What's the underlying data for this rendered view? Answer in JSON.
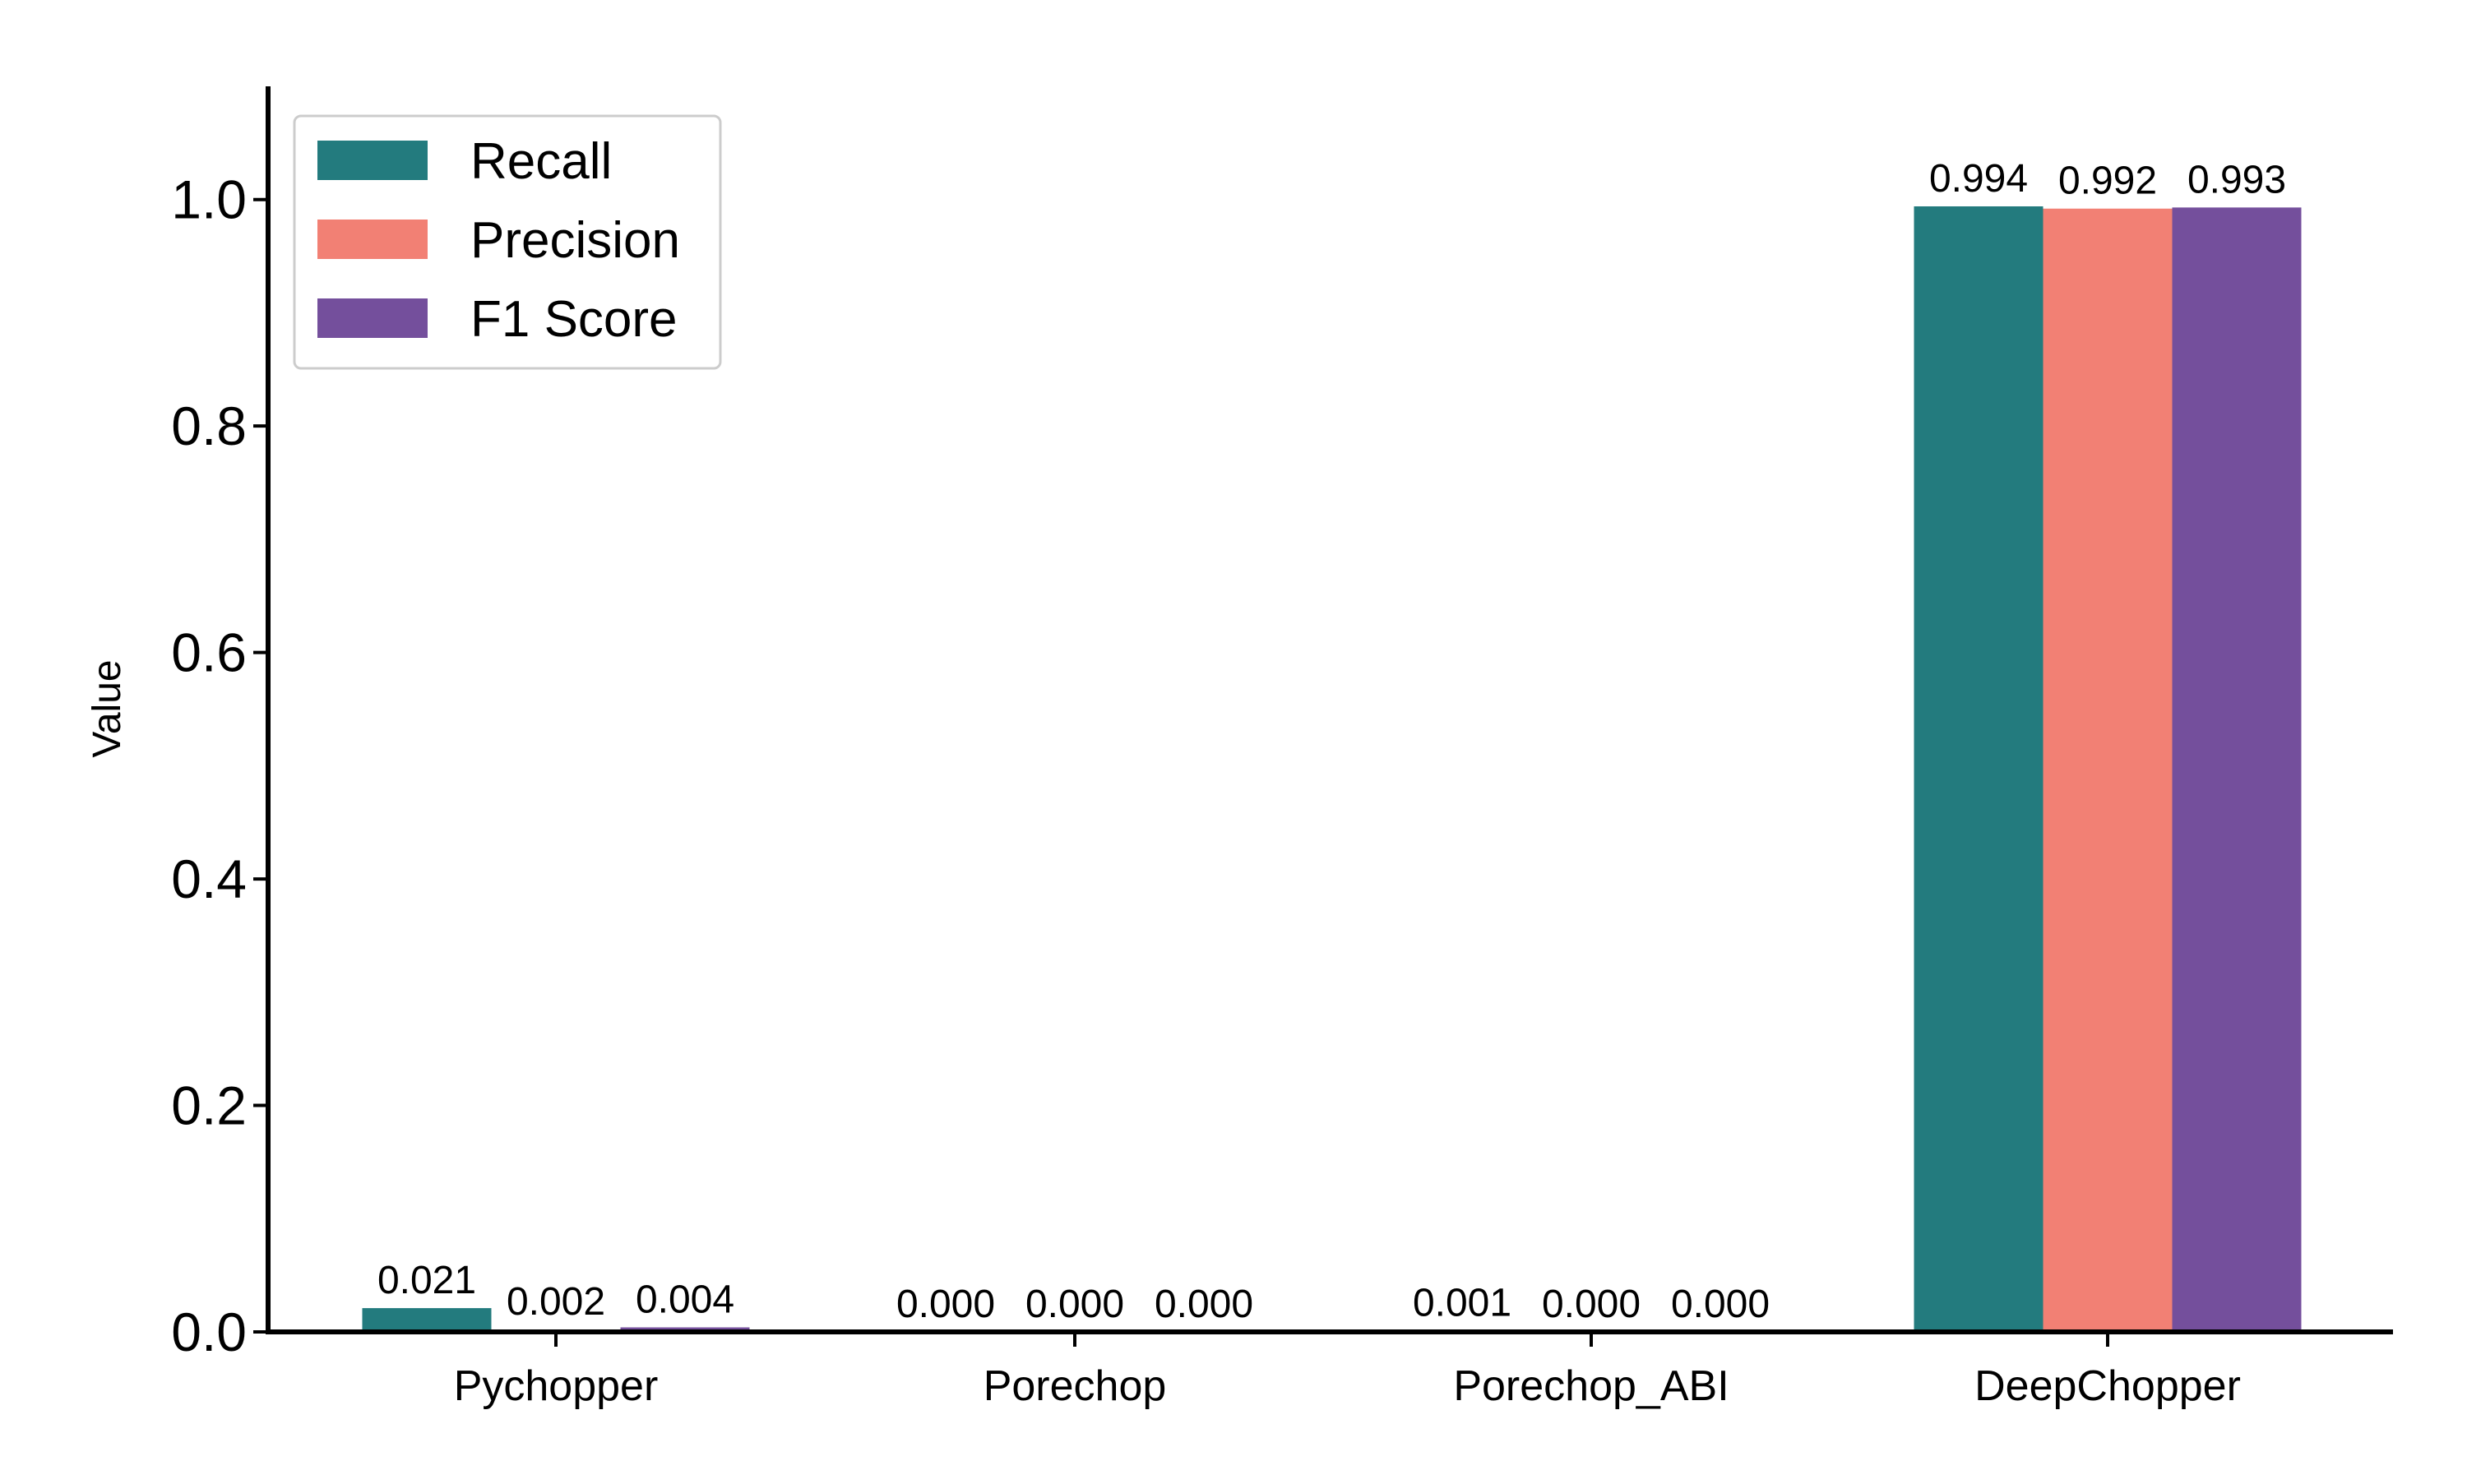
{
  "chart_data": {
    "type": "bar",
    "title": "",
    "xlabel": "",
    "ylabel": "Value",
    "ylim": [
      0,
      1.1
    ],
    "yticks": [
      0.0,
      0.2,
      0.4,
      0.6,
      0.8,
      1.0
    ],
    "ytick_labels": [
      "0.0",
      "0.2",
      "0.4",
      "0.6",
      "0.8",
      "1.0"
    ],
    "categories": [
      "Pychopper",
      "Porechop",
      "Porechop_ABI",
      "DeepChopper"
    ],
    "series": [
      {
        "name": "Recall",
        "color": "#237b7e",
        "values": [
          0.021,
          0.0,
          0.001,
          0.994
        ],
        "labels": [
          "0.021",
          "0.000",
          "0.001",
          "0.994"
        ]
      },
      {
        "name": "Precision",
        "color": "#f28074",
        "values": [
          0.002,
          0.0,
          0.0,
          0.992
        ],
        "labels": [
          "0.002",
          "0.000",
          "0.000",
          "0.992"
        ]
      },
      {
        "name": "F1 Score",
        "color": "#744f9c",
        "values": [
          0.004,
          0.0,
          0.0,
          0.993
        ],
        "labels": [
          "0.004",
          "0.000",
          "0.000",
          "0.993"
        ]
      }
    ],
    "grid": false,
    "legend_position": "top-left"
  }
}
